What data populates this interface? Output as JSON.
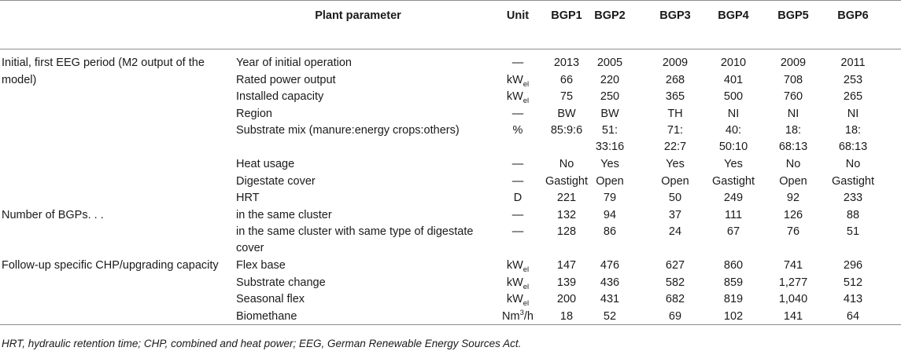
{
  "header": {
    "plant_parameter": "Plant parameter",
    "unit": "Unit",
    "plants": [
      "BGP1",
      "BGP2",
      "BGP3",
      "BGP4",
      "BGP5",
      "BGP6"
    ]
  },
  "groups": [
    {
      "label": "Initial, first EEG period (M2 output of the model)",
      "rows": [
        {
          "param": "Year of initial operation",
          "unit": "—",
          "values": [
            "2013",
            "2005",
            "2009",
            "2010",
            "2009",
            "2011"
          ]
        },
        {
          "param": "Rated power output",
          "unit": "kW_el",
          "values": [
            "66",
            "220",
            "268",
            "401",
            "708",
            "253"
          ]
        },
        {
          "param": "Installed capacity",
          "unit": "kW_el",
          "values": [
            "75",
            "250",
            "365",
            "500",
            "760",
            "265"
          ]
        },
        {
          "param": "Region",
          "unit": "—",
          "values": [
            "BW",
            "BW",
            "TH",
            "NI",
            "NI",
            "NI"
          ]
        },
        {
          "param": "Substrate mix (manure:energy crops:others)",
          "unit": "%",
          "values": [
            "85:9:6",
            "51:\n33:16",
            "71:\n22:7",
            "40:\n50:10",
            "18:\n68:13",
            "18:\n68:13"
          ]
        },
        {
          "param": "Heat usage",
          "unit": "—",
          "values": [
            "No",
            "Yes",
            "Yes",
            "Yes",
            "No",
            "No"
          ]
        },
        {
          "param": "Digestate cover",
          "unit": "—",
          "values": [
            "Gastight",
            "Open",
            "Open",
            "Gastight",
            "Open",
            "Gastight"
          ]
        },
        {
          "param": "HRT",
          "unit": "D",
          "values": [
            "221",
            "79",
            "50",
            "249",
            "92",
            "233"
          ]
        }
      ]
    },
    {
      "label": "Number of BGPs. . .",
      "rows": [
        {
          "param": "in the same cluster",
          "unit": "—",
          "values": [
            "132",
            "94",
            "37",
            "111",
            "126",
            "88"
          ]
        },
        {
          "param": "in the same cluster with same type of digestate\ncover",
          "unit": "—",
          "values": [
            "128",
            "86",
            "24",
            "67",
            "76",
            "51"
          ]
        }
      ]
    },
    {
      "label": "Follow-up specific CHP/upgrading capacity",
      "rows": [
        {
          "param": "Flex base",
          "unit": "kW_el",
          "values": [
            "147",
            "476",
            "627",
            "860",
            "741",
            "296"
          ]
        },
        {
          "param": "Substrate change",
          "unit": "kW_el",
          "values": [
            "139",
            "436",
            "582",
            "859",
            "1,277",
            "512"
          ]
        },
        {
          "param": "Seasonal flex",
          "unit": "kW_el",
          "values": [
            "200",
            "431",
            "682",
            "819",
            "1,040",
            "413"
          ]
        },
        {
          "param": "Biomethane",
          "unit": "Nm^3/h",
          "values": [
            "18",
            "52",
            "69",
            "102",
            "141",
            "64"
          ]
        }
      ]
    }
  ],
  "footnote": "HRT, hydraulic retention time; CHP, combined and heat power; EEG, German Renewable Energy Sources Act."
}
